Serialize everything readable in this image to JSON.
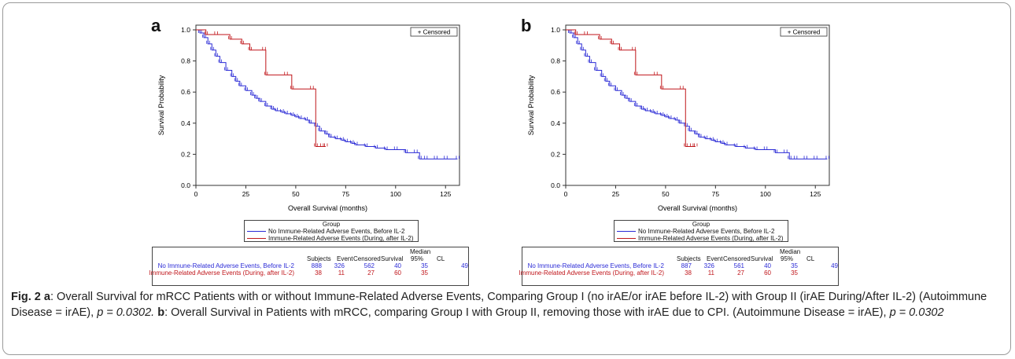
{
  "chart_data": [
    {
      "type": "line",
      "panel_label": "a",
      "xlabel": "Overall Survival (months)",
      "ylabel": "Survival Probability",
      "xlim": [
        0,
        132
      ],
      "ylim": [
        0,
        1.0
      ],
      "xticks": [
        "0",
        "25",
        "50",
        "75",
        "100",
        "125"
      ],
      "yticks": [
        "0.0",
        "0.2",
        "0.4",
        "0.6",
        "0.8",
        "1.0"
      ],
      "censored_note": "+ Censored",
      "legend_title": "Group",
      "series": [
        {
          "name": "No Immune-Related Adverse Events, Before IL-2",
          "color": "#2b2bd6",
          "x": [
            0,
            2,
            4,
            6,
            8,
            10,
            12,
            15,
            18,
            20,
            22,
            25,
            28,
            30,
            32,
            35,
            38,
            40,
            43,
            45,
            48,
            50,
            52,
            55,
            57,
            60,
            62,
            65,
            67,
            70,
            73,
            75,
            78,
            80,
            85,
            90,
            95,
            100,
            105,
            110,
            112,
            115,
            120,
            125,
            131
          ],
          "y": [
            1.0,
            0.98,
            0.95,
            0.91,
            0.87,
            0.83,
            0.79,
            0.74,
            0.7,
            0.67,
            0.64,
            0.61,
            0.58,
            0.56,
            0.54,
            0.51,
            0.49,
            0.48,
            0.47,
            0.46,
            0.45,
            0.44,
            0.43,
            0.42,
            0.4,
            0.38,
            0.35,
            0.33,
            0.31,
            0.3,
            0.29,
            0.28,
            0.27,
            0.26,
            0.25,
            0.24,
            0.23,
            0.23,
            0.21,
            0.21,
            0.17,
            0.17,
            0.17,
            0.17,
            0.17
          ]
        },
        {
          "name": "Immune-Related Adverse Events (During, after IL-2)",
          "color": "#c0161b",
          "x": [
            0,
            5,
            10,
            17,
            23,
            27,
            34,
            35,
            45,
            48,
            58,
            60,
            63,
            65
          ],
          "y": [
            1.0,
            0.97,
            0.97,
            0.94,
            0.91,
            0.87,
            0.87,
            0.71,
            0.71,
            0.62,
            0.62,
            0.25,
            0.25,
            0.25
          ]
        }
      ],
      "table": {
        "header_median": "Median",
        "headers": [
          "Subjects",
          "Event",
          "Censored",
          "Survival",
          "95%",
          "CL"
        ],
        "rows": [
          {
            "name": "No Immune-Related Adverse Events, Before IL-2",
            "color": "#2b2bd6",
            "values": [
              "888",
              "326",
              "562",
              "40",
              "35",
              "49"
            ]
          },
          {
            "name": "Immune-Related Adverse Events (During, after IL-2)",
            "color": "#c0161b",
            "values": [
              "38",
              "11",
              "27",
              "60",
              "35",
              ""
            ]
          }
        ]
      }
    },
    {
      "type": "line",
      "panel_label": "b",
      "xlabel": "Overall Survival (months)",
      "ylabel": "Survival Probability",
      "xlim": [
        0,
        132
      ],
      "ylim": [
        0,
        1.0
      ],
      "xticks": [
        "0",
        "25",
        "50",
        "75",
        "100",
        "125"
      ],
      "yticks": [
        "0.0",
        "0.2",
        "0.4",
        "0.6",
        "0.8",
        "1.0"
      ],
      "censored_note": "+ Censored",
      "legend_title": "Group",
      "series": [
        {
          "name": "No Immune-Related Adverse Events, Before IL-2",
          "color": "#2b2bd6",
          "x": [
            0,
            2,
            4,
            6,
            8,
            10,
            12,
            15,
            18,
            20,
            22,
            25,
            28,
            30,
            32,
            35,
            38,
            40,
            43,
            45,
            48,
            50,
            52,
            55,
            57,
            60,
            62,
            65,
            67,
            70,
            73,
            75,
            78,
            80,
            85,
            90,
            95,
            100,
            105,
            110,
            112,
            115,
            120,
            125,
            131
          ],
          "y": [
            1.0,
            0.98,
            0.95,
            0.91,
            0.87,
            0.83,
            0.79,
            0.74,
            0.7,
            0.67,
            0.64,
            0.61,
            0.58,
            0.56,
            0.54,
            0.51,
            0.49,
            0.48,
            0.47,
            0.46,
            0.45,
            0.44,
            0.43,
            0.42,
            0.4,
            0.38,
            0.35,
            0.33,
            0.31,
            0.3,
            0.29,
            0.28,
            0.27,
            0.26,
            0.25,
            0.24,
            0.23,
            0.23,
            0.21,
            0.21,
            0.17,
            0.17,
            0.17,
            0.17,
            0.17
          ]
        },
        {
          "name": "Immune-Related Adverse Events (During, after IL-2)",
          "color": "#c0161b",
          "x": [
            0,
            5,
            10,
            17,
            23,
            27,
            34,
            35,
            45,
            48,
            58,
            60,
            63,
            65
          ],
          "y": [
            1.0,
            0.97,
            0.97,
            0.94,
            0.91,
            0.87,
            0.87,
            0.71,
            0.71,
            0.62,
            0.62,
            0.25,
            0.25,
            0.25
          ]
        }
      ],
      "table": {
        "header_median": "Median",
        "headers": [
          "Subjects",
          "Event",
          "Censored",
          "Survival",
          "95%",
          "CL"
        ],
        "rows": [
          {
            "name": "No Immune-Related Adverse Events, Before IL-2",
            "color": "#2b2bd6",
            "values": [
              "887",
              "326",
              "561",
              "40",
              "35",
              "49"
            ]
          },
          {
            "name": "Immune-Related Adverse Events (During, after IL-2)",
            "color": "#c0161b",
            "values": [
              "38",
              "11",
              "27",
              "60",
              "35",
              ""
            ]
          }
        ]
      }
    }
  ],
  "caption": {
    "fig_label": "Fig. 2",
    "a_label": "a",
    "a_text": ": Overall Survival for mRCC Patients with or without Immune-Related Adverse Events, Comparing Group I (no irAE/or irAE before IL-2) with Group II (irAE During/After IL-2) (Autoimmune Disease = irAE), ",
    "a_p": "p = 0.0302. ",
    "b_label": "b",
    "b_text": ": Overall Survival in Patients with mRCC, comparing Group I with Group II, removing those with irAE due to CPI. (Autoimmune Disease = irAE), ",
    "b_p": "p = 0.0302"
  }
}
